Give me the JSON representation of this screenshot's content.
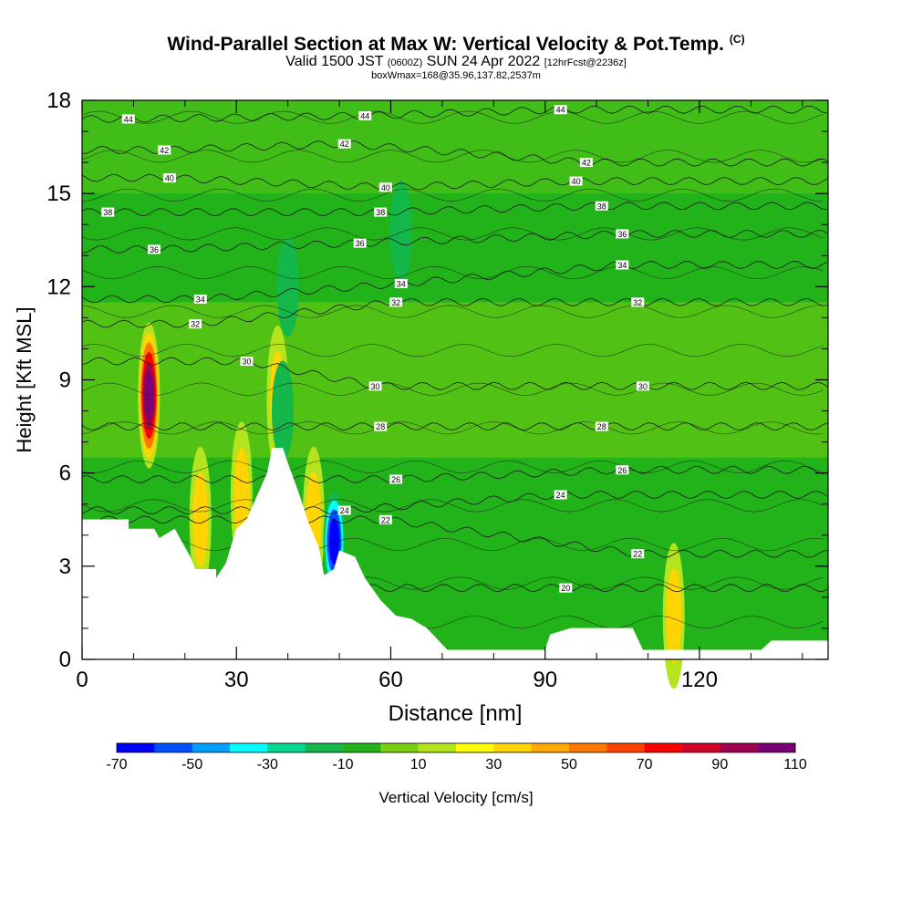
{
  "header": {
    "title": "Wind-Parallel Section at Max W: Vertical Velocity & Pot.Temp.",
    "title_suffix": "(C)",
    "subtitle_a": "Valid 1500 JST",
    "subtitle_b": "(0600Z)",
    "subtitle_c": "SUN 24 Apr 2022",
    "subtitle_d": "[12hrFcst@2236z]",
    "subtitle3": "boxWmax=168@35.96,137.82,2537m"
  },
  "chart_data": {
    "type": "heatmap",
    "xlabel": "Distance [nm]",
    "ylabel": "Height [Kft MSL]",
    "xlim": [
      0,
      145
    ],
    "ylim": [
      0,
      18
    ],
    "x_ticks": [
      0,
      30,
      60,
      90,
      120
    ],
    "y_ticks": [
      0,
      3,
      6,
      9,
      12,
      15,
      18
    ],
    "colorbar": {
      "label": "Vertical Velocity [cm/s]",
      "tick_labels": [
        -70,
        -50,
        -30,
        -10,
        10,
        30,
        50,
        70,
        90,
        110
      ],
      "levels": [
        -70,
        -60,
        -50,
        -40,
        -30,
        -20,
        -10,
        0,
        10,
        20,
        30,
        40,
        50,
        60,
        70,
        80,
        90,
        100,
        110
      ],
      "colors": [
        "#0000ff",
        "#0050ff",
        "#00a0ff",
        "#00ffff",
        "#00d890",
        "#14b84a",
        "#22b21a",
        "#78d010",
        "#b4e41e",
        "#ffff00",
        "#ffd400",
        "#ffa800",
        "#ff7800",
        "#ff4400",
        "#ff0000",
        "#d00028",
        "#a00050",
        "#7a0078"
      ]
    },
    "terrain_profile": [
      [
        0,
        4.5
      ],
      [
        9,
        4.5
      ],
      [
        9,
        4.2
      ],
      [
        14,
        4.2
      ],
      [
        15,
        3.9
      ],
      [
        18,
        4.2
      ],
      [
        21,
        3.3
      ],
      [
        22,
        2.9
      ],
      [
        26,
        2.9
      ],
      [
        26,
        2.6
      ],
      [
        28,
        3.1
      ],
      [
        30,
        4.2
      ],
      [
        32,
        4.5
      ],
      [
        36,
        6.0
      ],
      [
        37,
        6.8
      ],
      [
        39,
        6.8
      ],
      [
        40,
        6.3
      ],
      [
        42,
        5.4
      ],
      [
        44,
        4.4
      ],
      [
        46,
        3.6
      ],
      [
        47,
        2.7
      ],
      [
        49,
        2.9
      ],
      [
        50,
        3.5
      ],
      [
        53,
        3.3
      ],
      [
        55,
        2.6
      ],
      [
        58,
        1.9
      ],
      [
        61,
        1.4
      ],
      [
        64,
        1.3
      ],
      [
        67,
        1.0
      ],
      [
        71,
        0.3
      ],
      [
        90,
        0.3
      ],
      [
        91,
        0.8
      ],
      [
        95,
        1.0
      ],
      [
        107,
        1.0
      ],
      [
        109,
        0.3
      ],
      [
        132,
        0.3
      ],
      [
        134,
        0.6
      ],
      [
        145,
        0.6
      ]
    ],
    "theta_labels": [
      {
        "label": "44",
        "x": 9,
        "y": 17.4
      },
      {
        "label": "44",
        "x": 55,
        "y": 17.5
      },
      {
        "label": "44",
        "x": 93,
        "y": 17.7
      },
      {
        "label": "42",
        "x": 16,
        "y": 16.4
      },
      {
        "label": "42",
        "x": 51,
        "y": 16.6
      },
      {
        "label": "42",
        "x": 98,
        "y": 16.0
      },
      {
        "label": "40",
        "x": 17,
        "y": 15.5
      },
      {
        "label": "40",
        "x": 59,
        "y": 15.2
      },
      {
        "label": "40",
        "x": 96,
        "y": 15.4
      },
      {
        "label": "38",
        "x": 5,
        "y": 14.4
      },
      {
        "label": "38",
        "x": 58,
        "y": 14.4
      },
      {
        "label": "38",
        "x": 101,
        "y": 14.6
      },
      {
        "label": "36",
        "x": 14,
        "y": 13.2
      },
      {
        "label": "36",
        "x": 54,
        "y": 13.4
      },
      {
        "label": "36",
        "x": 105,
        "y": 13.7
      },
      {
        "label": "34",
        "x": 23,
        "y": 11.6
      },
      {
        "label": "34",
        "x": 62,
        "y": 12.1
      },
      {
        "label": "34",
        "x": 105,
        "y": 12.7
      },
      {
        "label": "32",
        "x": 22,
        "y": 10.8
      },
      {
        "label": "32",
        "x": 61,
        "y": 11.5
      },
      {
        "label": "32",
        "x": 108,
        "y": 11.5
      },
      {
        "label": "30",
        "x": 32,
        "y": 9.6
      },
      {
        "label": "30",
        "x": 57,
        "y": 8.8
      },
      {
        "label": "30",
        "x": 109,
        "y": 8.8
      },
      {
        "label": "28",
        "x": 58,
        "y": 7.5
      },
      {
        "label": "28",
        "x": 101,
        "y": 7.5
      },
      {
        "label": "26",
        "x": 61,
        "y": 5.8
      },
      {
        "label": "26",
        "x": 105,
        "y": 6.1
      },
      {
        "label": "24",
        "x": 51,
        "y": 4.8
      },
      {
        "label": "24",
        "x": 93,
        "y": 5.3
      },
      {
        "label": "22",
        "x": 59,
        "y": 4.5
      },
      {
        "label": "22",
        "x": 108,
        "y": 3.4
      },
      {
        "label": "20",
        "x": 94,
        "y": 2.3
      }
    ],
    "updraft_cores": [
      {
        "x": 13,
        "y": 8.5,
        "w": 110
      },
      {
        "x": 23,
        "y": 4.5,
        "w": 45
      },
      {
        "x": 31,
        "y": 5.3,
        "w": 45
      },
      {
        "x": 38,
        "y": 8.4,
        "w": 30
      },
      {
        "x": 45,
        "y": 4.5,
        "w": 45
      },
      {
        "x": 115,
        "y": 1.4,
        "w": 30
      }
    ],
    "downdraft_cores": [
      {
        "x": 49,
        "y": 3.8,
        "w": -70
      },
      {
        "x": 39,
        "y": 8.0,
        "w": -25
      },
      {
        "x": 62,
        "y": 13.8,
        "w": -25
      },
      {
        "x": 40,
        "y": 12.0,
        "w": -20
      }
    ]
  }
}
